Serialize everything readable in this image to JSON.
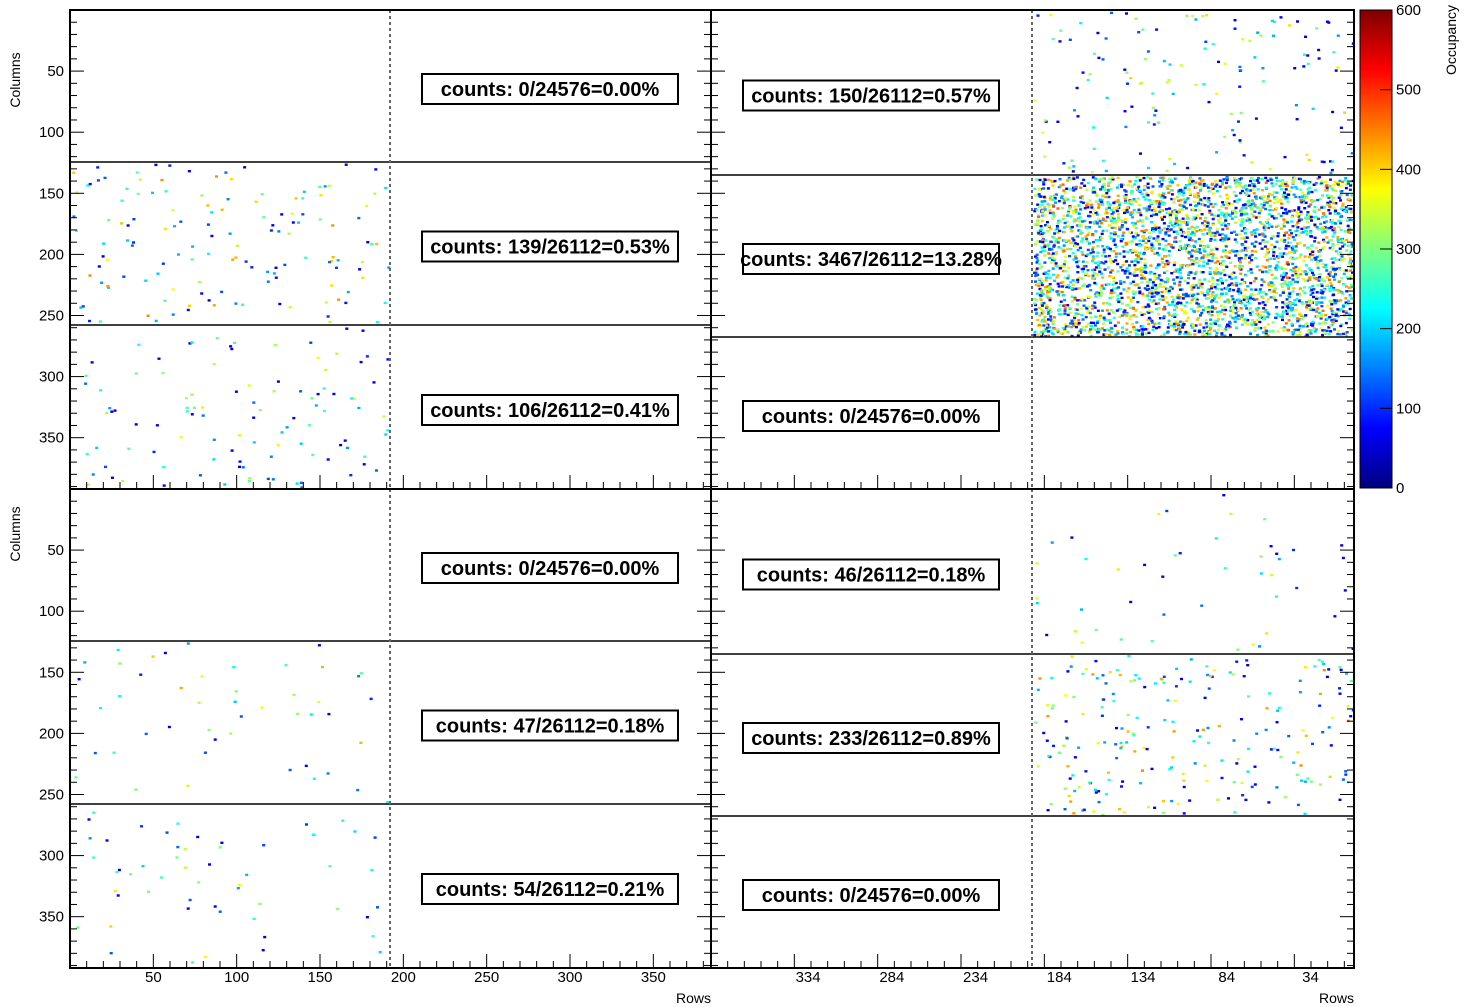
{
  "chart_data": {
    "type": "heatmap",
    "description_axes": {
      "ylabel": "Columns",
      "xlabel": "Rows",
      "colorbar_label": "Occupancy"
    },
    "colorbar": {
      "min": 0,
      "max": 600,
      "ticks": [
        "0",
        "100",
        "200",
        "300",
        "400",
        "500",
        "600"
      ],
      "stops": [
        "#00007f",
        "#0000ff",
        "#007fff",
        "#00ffff",
        "#7fff7f",
        "#ffff00",
        "#ff7f00",
        "#ff0000",
        "#7f0000"
      ]
    },
    "y_ticks": [
      "50",
      "100",
      "150",
      "200",
      "250",
      "300",
      "350"
    ],
    "x_ticks_left": [
      "50",
      "100",
      "150",
      "200",
      "250",
      "300",
      "350"
    ],
    "x_ticks_right": [
      "334",
      "284",
      "234",
      "184",
      "134",
      "84",
      "34"
    ],
    "panels": [
      {
        "name": "top-left",
        "sections": [
          {
            "counts": "counts: 0/24576=0.00%",
            "hits": 0,
            "mean_occupancy": 0
          },
          {
            "counts": "counts: 139/26112=0.53%",
            "hits": 139,
            "mean_occupancy": 230
          },
          {
            "counts": "counts: 106/26112=0.41%",
            "hits": 106,
            "mean_occupancy": 170
          }
        ]
      },
      {
        "name": "top-right",
        "sections": [
          {
            "counts": "counts: 150/26112=0.57%",
            "hits": 150,
            "mean_occupancy": 180
          },
          {
            "counts": "counts: 3467/26112=13.28%",
            "hits": 3467,
            "mean_occupancy": 250
          },
          {
            "counts": "counts: 0/24576=0.00%",
            "hits": 0,
            "mean_occupancy": 0
          }
        ]
      },
      {
        "name": "bottom-left",
        "sections": [
          {
            "counts": "counts: 0/24576=0.00%",
            "hits": 0,
            "mean_occupancy": 0
          },
          {
            "counts": "counts: 47/26112=0.18%",
            "hits": 47,
            "mean_occupancy": 220
          },
          {
            "counts": "counts: 54/26112=0.21%",
            "hits": 54,
            "mean_occupancy": 180
          }
        ]
      },
      {
        "name": "bottom-right",
        "sections": [
          {
            "counts": "counts: 46/26112=0.18%",
            "hits": 46,
            "mean_occupancy": 180
          },
          {
            "counts": "counts: 233/26112=0.89%",
            "hits": 233,
            "mean_occupancy": 230
          },
          {
            "counts": "counts: 0/24576=0.00%",
            "hits": 0,
            "mean_occupancy": 0
          }
        ]
      }
    ]
  }
}
